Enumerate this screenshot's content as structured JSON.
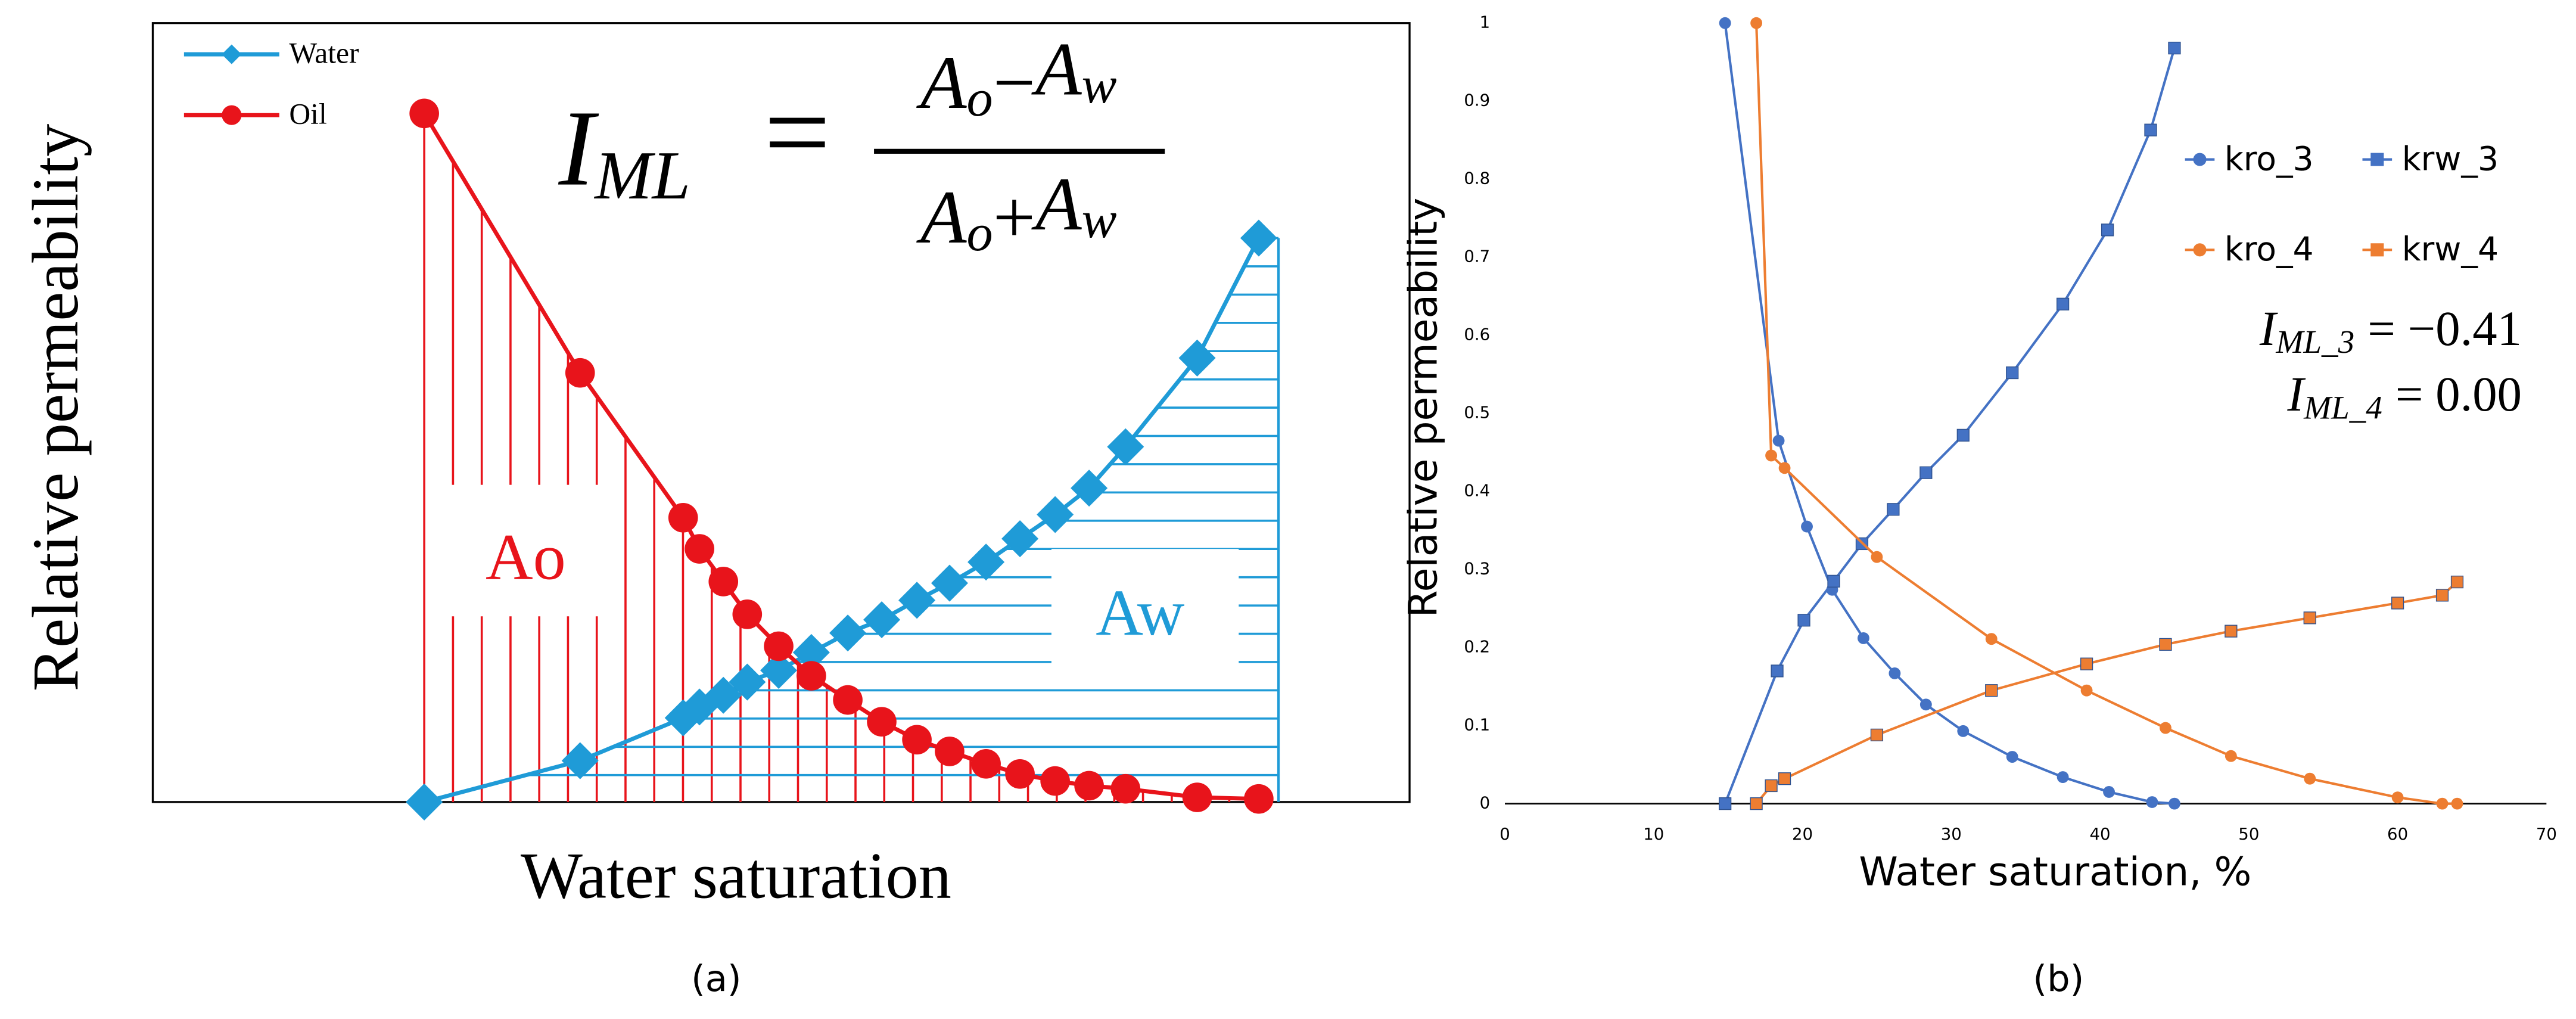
{
  "chart_data": [
    {
      "type": "line",
      "caption": "(a)",
      "x_label": "Water saturation",
      "y_label": "Relative permeability",
      "xlim": [
        0,
        1
      ],
      "ylim": [
        0,
        1
      ],
      "legend": "top-left",
      "x": [
        0.216,
        0.34,
        0.422,
        0.435,
        0.454,
        0.473,
        0.498,
        0.524,
        0.553,
        0.58,
        0.608,
        0.634,
        0.663,
        0.69,
        0.718,
        0.745,
        0.774,
        0.831,
        0.88
      ],
      "series": [
        {
          "name": "Water",
          "color": "#1f9bd7",
          "marker": "diamond",
          "values": [
            0,
            0.053,
            0.108,
            0.122,
            0.137,
            0.154,
            0.169,
            0.192,
            0.217,
            0.234,
            0.259,
            0.281,
            0.308,
            0.338,
            0.369,
            0.403,
            0.456,
            0.57,
            0.724
          ]
        },
        {
          "name": "Oil",
          "color": "#e8141b",
          "marker": "circle",
          "values": [
            0.884,
            0.551,
            0.365,
            0.325,
            0.283,
            0.241,
            0.2,
            0.162,
            0.131,
            0.103,
            0.08,
            0.065,
            0.049,
            0.036,
            0.027,
            0.021,
            0.017,
            0.006,
            0.004
          ]
        }
      ],
      "area_labels": [
        "Ao",
        "Aw"
      ],
      "formula": {
        "lhs": "I",
        "lhs_sub": "ML",
        "equals": "=",
        "numerator": [
          "A",
          "o",
          "−",
          "A",
          "w"
        ],
        "denominator": [
          "A",
          "o",
          "+",
          "A",
          "w"
        ]
      }
    },
    {
      "type": "line",
      "caption": "(b)",
      "x_label": "Water saturation, %",
      "y_label": "Relative permeability",
      "xlim": [
        0,
        70
      ],
      "ylim": [
        0,
        1
      ],
      "xticks": [
        0,
        10,
        20,
        30,
        40,
        50,
        60,
        70
      ],
      "yticks": [
        0,
        0.1,
        0.2,
        0.3,
        0.4,
        0.5,
        0.6,
        0.7,
        0.8,
        0.9,
        1
      ],
      "legend": "right",
      "series": [
        {
          "name": "kro_3",
          "color": "#4472c4",
          "marker": "circle",
          "x": [
            14.8,
            18.4,
            20.3,
            22,
            24.1,
            26.2,
            28.3,
            30.8,
            34.1,
            37.5,
            40.6,
            43.5,
            45
          ],
          "values": [
            1,
            0.465,
            0.355,
            0.274,
            0.212,
            0.167,
            0.127,
            0.093,
            0.06,
            0.034,
            0.015,
            0.002,
            0
          ]
        },
        {
          "name": "krw_3",
          "color": "#4472c4",
          "marker": "square",
          "x": [
            14.8,
            18.3,
            20.1,
            22.1,
            24,
            26.1,
            28.3,
            30.8,
            34.1,
            37.5,
            40.5,
            43.4,
            45
          ],
          "values": [
            0,
            0.17,
            0.235,
            0.285,
            0.333,
            0.377,
            0.424,
            0.472,
            0.552,
            0.64,
            0.735,
            0.863,
            0.968
          ]
        },
        {
          "name": "kro_4",
          "color": "#ed7d31",
          "marker": "circle",
          "x": [
            16.9,
            17.9,
            18.8,
            25,
            32.7,
            39.1,
            44.4,
            48.8,
            54.1,
            60,
            63,
            64
          ],
          "values": [
            1,
            0.446,
            0.43,
            0.316,
            0.211,
            0.145,
            0.097,
            0.061,
            0.032,
            0.008,
            0,
            0
          ]
        },
        {
          "name": "krw_4",
          "color": "#ed7d31",
          "marker": "square",
          "x": [
            16.9,
            17.9,
            18.8,
            25,
            32.7,
            39.1,
            44.4,
            48.8,
            54.1,
            60,
            63,
            64
          ],
          "values": [
            0,
            0.023,
            0.032,
            0.088,
            0.145,
            0.179,
            0.204,
            0.221,
            0.238,
            0.257,
            0.267,
            0.284
          ]
        }
      ],
      "annotations": [
        {
          "lhs": "I",
          "sub": "ML_3",
          "rhs": "= −0.41"
        },
        {
          "lhs": "I",
          "sub": "ML_4",
          "rhs": "= 0.00"
        }
      ]
    }
  ]
}
